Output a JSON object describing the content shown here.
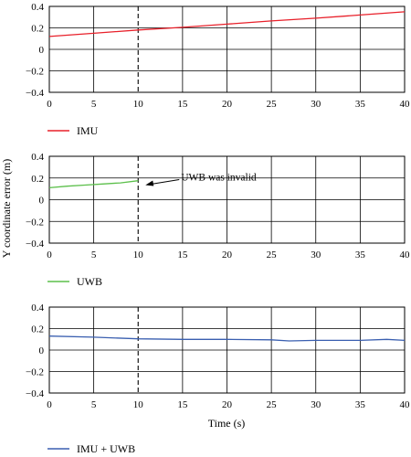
{
  "chart_data": {
    "type": "line",
    "ylabel": "Y coordinate error (m)",
    "xlabel": "Time (s)",
    "vline_x": 10,
    "grid": true,
    "panels": [
      {
        "series": [
          {
            "name": "IMU",
            "color": "#e8202a",
            "x": [
              0,
              5,
              10,
              15,
              20,
              25,
              30,
              35,
              40
            ],
            "y": [
              0.12,
              0.15,
              0.18,
              0.205,
              0.235,
              0.265,
              0.29,
              0.32,
              0.35
            ]
          }
        ],
        "xlim": [
          0,
          40
        ],
        "ylim": [
          -0.4,
          0.4
        ],
        "xticks": [
          0,
          5,
          10,
          15,
          20,
          25,
          30,
          35,
          40
        ],
        "yticks": [
          0.4,
          0.2,
          0,
          -0.2,
          -0.4
        ],
        "ytick_labels": [
          "0.4",
          "0.2",
          "0",
          "−0.2",
          "−0.4"
        ]
      },
      {
        "series": [
          {
            "name": "UWB",
            "color": "#5bbf4a",
            "x": [
              0,
              2,
              4,
              6,
              8,
              10
            ],
            "y": [
              0.11,
              0.125,
              0.135,
              0.145,
              0.155,
              0.175
            ]
          }
        ],
        "annotation": {
          "text": "UWB was invalid",
          "arrow_x": 10,
          "arrow_y": 0.16
        },
        "xlim": [
          0,
          40
        ],
        "ylim": [
          -0.4,
          0.4
        ],
        "xticks": [
          0,
          5,
          10,
          15,
          20,
          25,
          30,
          35,
          40
        ],
        "yticks": [
          0.4,
          0.2,
          0,
          -0.2,
          -0.4
        ],
        "ytick_labels": [
          "0.4",
          "0.2",
          "0",
          "−0.2",
          "−0.4"
        ]
      },
      {
        "series": [
          {
            "name": "IMU + UWB",
            "color": "#3a5fb0",
            "x": [
              0,
              5,
              10,
              15,
              20,
              25,
              27,
              30,
              35,
              38,
              40
            ],
            "y": [
              0.13,
              0.12,
              0.105,
              0.1,
              0.1,
              0.095,
              0.085,
              0.09,
              0.09,
              0.1,
              0.09
            ]
          }
        ],
        "xlim": [
          0,
          40
        ],
        "ylim": [
          -0.4,
          0.4
        ],
        "xticks": [
          0,
          5,
          10,
          15,
          20,
          25,
          30,
          35,
          40
        ],
        "yticks": [
          0.4,
          0.2,
          0,
          -0.2,
          -0.4
        ],
        "ytick_labels": [
          "0.4",
          "0.2",
          "0",
          "−0.2",
          "−0.4"
        ]
      }
    ]
  }
}
